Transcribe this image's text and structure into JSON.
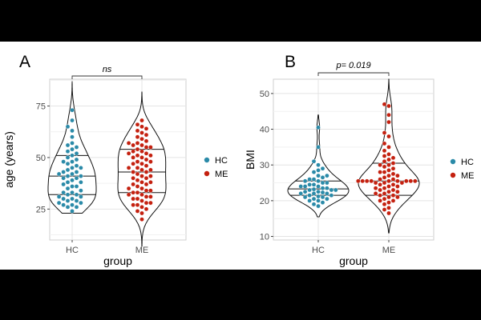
{
  "chart_data": [
    {
      "panel": "A",
      "type": "violin",
      "xlabel": "group",
      "ylabel": "age (years)",
      "categories": [
        "HC",
        "ME"
      ],
      "ylim": [
        10,
        88
      ],
      "yticks": [
        25,
        50,
        75
      ],
      "grid": true,
      "legend": {
        "position": "right",
        "entries": [
          {
            "label": "HC",
            "color": "#2a8aa8"
          },
          {
            "label": "ME",
            "color": "#c4200f"
          }
        ]
      },
      "annotation": {
        "text": "ns",
        "italic": true
      },
      "groups": [
        {
          "name": "HC",
          "color": "#2a8aa8",
          "range": [
            23,
            87
          ],
          "quartiles": [
            32,
            41,
            51
          ],
          "values": [
            24,
            26,
            26,
            27,
            27,
            28,
            28,
            29,
            29,
            30,
            30,
            31,
            31,
            32,
            32,
            33,
            33,
            34,
            35,
            36,
            36,
            37,
            38,
            38,
            39,
            40,
            40,
            41,
            41,
            42,
            42,
            43,
            43,
            44,
            45,
            45,
            46,
            47,
            48,
            48,
            49,
            50,
            51,
            52,
            53,
            54,
            55,
            56,
            57,
            60,
            63,
            65,
            68,
            73
          ]
        },
        {
          "name": "ME",
          "color": "#c4200f",
          "range": [
            7,
            82
          ],
          "quartiles": [
            33,
            43,
            54
          ],
          "values": [
            20,
            23,
            24,
            25,
            26,
            27,
            27,
            28,
            28,
            29,
            30,
            30,
            31,
            31,
            32,
            32,
            33,
            33,
            34,
            34,
            35,
            35,
            36,
            37,
            37,
            38,
            38,
            39,
            40,
            40,
            41,
            41,
            42,
            43,
            43,
            44,
            44,
            45,
            45,
            46,
            47,
            47,
            48,
            48,
            49,
            50,
            50,
            51,
            51,
            52,
            52,
            53,
            53,
            54,
            55,
            55,
            56,
            56,
            57,
            57,
            58,
            59,
            60,
            61,
            62,
            63,
            64,
            65,
            66,
            68
          ]
        }
      ]
    },
    {
      "panel": "B",
      "type": "violin",
      "xlabel": "group",
      "ylabel": "BMI",
      "categories": [
        "HC",
        "ME"
      ],
      "ylim": [
        9,
        54
      ],
      "yticks": [
        10,
        20,
        30,
        40,
        50
      ],
      "grid": true,
      "legend": {
        "position": "right",
        "entries": [
          {
            "label": "HC",
            "color": "#2a8aa8"
          },
          {
            "label": "ME",
            "color": "#c4200f"
          }
        ]
      },
      "annotation": {
        "text": "p= 0.019",
        "italic": true
      },
      "groups": [
        {
          "name": "HC",
          "color": "#2a8aa8",
          "range": [
            15.5,
            44
          ],
          "quartiles": [
            21.5,
            23.3,
            25.5
          ],
          "values": [
            18.5,
            19,
            19.5,
            20,
            20,
            20.5,
            20.5,
            21,
            21,
            21.2,
            21.5,
            21.5,
            22,
            22,
            22,
            22.3,
            22.5,
            22.5,
            23,
            23,
            23,
            23.2,
            23.5,
            23.5,
            24,
            24,
            24,
            24.5,
            24.5,
            25,
            25,
            25.5,
            25.5,
            26,
            26,
            26.5,
            27,
            27,
            28,
            28.5,
            29,
            30,
            31,
            35,
            40.5
          ]
        },
        {
          "name": "ME",
          "color": "#c4200f",
          "range": [
            11,
            54
          ],
          "quartiles": [
            21.5,
            25.5,
            30.5
          ],
          "values": [
            16.5,
            17.5,
            18,
            19,
            19.5,
            20,
            20,
            20.5,
            21,
            21,
            21.5,
            21.5,
            22,
            22,
            22.5,
            22.5,
            23,
            23,
            23.5,
            23.5,
            24,
            24,
            24.5,
            24.5,
            25,
            25,
            25,
            25.5,
            25.5,
            25.5,
            25.5,
            25.5,
            25.5,
            25.5,
            25.5,
            25.5,
            26,
            26,
            26.5,
            27,
            27,
            27.5,
            28,
            28,
            28.5,
            29,
            29.5,
            30,
            30,
            30.5,
            31,
            31.5,
            32,
            32.5,
            33,
            34,
            35,
            36,
            38,
            39,
            42,
            44,
            46.5,
            47
          ]
        }
      ]
    }
  ]
}
